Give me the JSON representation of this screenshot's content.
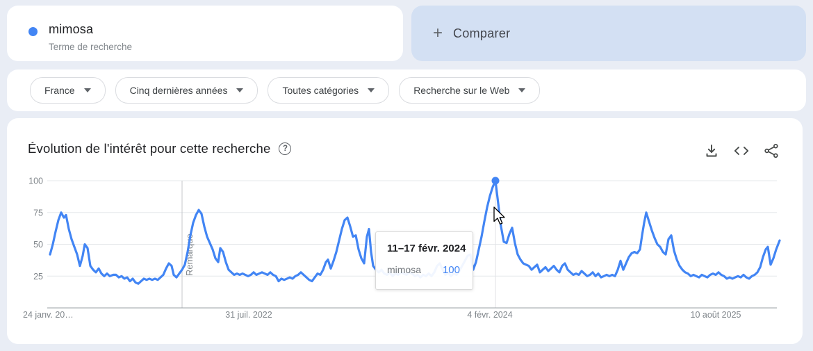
{
  "colors": {
    "accent": "#4285f4",
    "compare_bg": "#d3e0f3",
    "page_bg": "#e9edf5",
    "icon": "#444746"
  },
  "term_card": {
    "term": "mimosa",
    "subtitle": "Terme de recherche"
  },
  "compare_card": {
    "plus": "+",
    "label": "Comparer"
  },
  "filters": {
    "items": [
      {
        "label": "France"
      },
      {
        "label": "Cinq dernières années"
      },
      {
        "label": "Toutes catégories"
      },
      {
        "label": "Recherche sur le Web"
      }
    ]
  },
  "chart_card": {
    "title": "Évolution de l'intérêt pour cette recherche",
    "help_glyph": "?",
    "toolbar_icons": [
      "download-icon",
      "embed-code-icon",
      "share-icon"
    ],
    "note_label": "Remarque",
    "tooltip": {
      "date_range": "11–17 févr. 2024",
      "term": "mimosa",
      "value": "100"
    }
  },
  "chart_data": {
    "type": "line",
    "title": "Évolution de l'intérêt pour cette recherche",
    "ylim": [
      0,
      100
    ],
    "grid": true,
    "y_ticks": [
      "100",
      "75",
      "50",
      "25"
    ],
    "x_ticks": [
      "24 janv. 20…",
      "31 juil. 2022",
      "4 févr. 2024",
      "10 août 2025"
    ],
    "peak": {
      "x": 713,
      "value": 100,
      "date": "11–17 févr. 2024"
    },
    "series": [
      {
        "name": "mimosa",
        "color": "#4285f4",
        "points": [
          [
            72,
            42
          ],
          [
            76,
            50
          ],
          [
            80,
            60
          ],
          [
            84,
            69
          ],
          [
            88,
            75
          ],
          [
            92,
            71
          ],
          [
            95,
            73
          ],
          [
            99,
            62
          ],
          [
            103,
            54
          ],
          [
            107,
            48
          ],
          [
            111,
            42
          ],
          [
            115,
            33
          ],
          [
            119,
            41
          ],
          [
            122,
            50
          ],
          [
            126,
            47
          ],
          [
            130,
            33
          ],
          [
            134,
            30
          ],
          [
            138,
            28
          ],
          [
            142,
            31
          ],
          [
            146,
            27
          ],
          [
            150,
            25
          ],
          [
            154,
            27
          ],
          [
            158,
            25
          ],
          [
            163,
            26
          ],
          [
            167,
            26
          ],
          [
            171,
            24
          ],
          [
            175,
            25
          ],
          [
            179,
            23
          ],
          [
            183,
            24
          ],
          [
            187,
            21
          ],
          [
            191,
            23
          ],
          [
            195,
            20
          ],
          [
            199,
            19
          ],
          [
            203,
            21
          ],
          [
            207,
            23
          ],
          [
            211,
            22
          ],
          [
            215,
            23
          ],
          [
            219,
            22
          ],
          [
            223,
            23
          ],
          [
            227,
            22
          ],
          [
            231,
            24
          ],
          [
            235,
            26
          ],
          [
            239,
            31
          ],
          [
            243,
            35
          ],
          [
            247,
            33
          ],
          [
            250,
            26
          ],
          [
            254,
            24
          ],
          [
            258,
            27
          ],
          [
            262,
            30
          ],
          [
            266,
            34
          ],
          [
            270,
            44
          ],
          [
            274,
            57
          ],
          [
            278,
            67
          ],
          [
            282,
            73
          ],
          [
            286,
            77
          ],
          [
            290,
            74
          ],
          [
            294,
            64
          ],
          [
            298,
            56
          ],
          [
            302,
            51
          ],
          [
            306,
            46
          ],
          [
            310,
            39
          ],
          [
            314,
            36
          ],
          [
            317,
            47
          ],
          [
            321,
            44
          ],
          [
            325,
            36
          ],
          [
            329,
            30
          ],
          [
            333,
            28
          ],
          [
            337,
            26
          ],
          [
            341,
            27
          ],
          [
            345,
            26
          ],
          [
            349,
            27
          ],
          [
            353,
            26
          ],
          [
            357,
            25
          ],
          [
            361,
            26
          ],
          [
            365,
            28
          ],
          [
            369,
            26
          ],
          [
            373,
            27
          ],
          [
            377,
            28
          ],
          [
            381,
            27
          ],
          [
            385,
            26
          ],
          [
            389,
            28
          ],
          [
            393,
            26
          ],
          [
            397,
            25
          ],
          [
            401,
            21
          ],
          [
            405,
            23
          ],
          [
            409,
            22
          ],
          [
            413,
            23
          ],
          [
            417,
            24
          ],
          [
            421,
            23
          ],
          [
            425,
            25
          ],
          [
            429,
            26
          ],
          [
            433,
            28
          ],
          [
            437,
            26
          ],
          [
            441,
            24
          ],
          [
            445,
            22
          ],
          [
            449,
            21
          ],
          [
            453,
            24
          ],
          [
            457,
            27
          ],
          [
            461,
            26
          ],
          [
            465,
            30
          ],
          [
            469,
            36
          ],
          [
            472,
            38
          ],
          [
            476,
            31
          ],
          [
            480,
            37
          ],
          [
            484,
            44
          ],
          [
            488,
            53
          ],
          [
            492,
            62
          ],
          [
            496,
            69
          ],
          [
            500,
            71
          ],
          [
            504,
            64
          ],
          [
            508,
            56
          ],
          [
            512,
            57
          ],
          [
            516,
            46
          ],
          [
            520,
            39
          ],
          [
            524,
            35
          ],
          [
            528,
            56
          ],
          [
            531,
            62
          ],
          [
            534,
            44
          ],
          [
            537,
            33
          ],
          [
            541,
            30
          ],
          [
            545,
            28
          ],
          [
            549,
            30
          ],
          [
            553,
            27
          ],
          [
            557,
            26
          ],
          [
            561,
            28
          ],
          [
            565,
            25
          ],
          [
            569,
            27
          ],
          [
            573,
            26
          ],
          [
            577,
            28
          ],
          [
            581,
            27
          ],
          [
            585,
            26
          ],
          [
            589,
            28
          ],
          [
            593,
            27
          ],
          [
            597,
            25
          ],
          [
            601,
            26
          ],
          [
            605,
            24
          ],
          [
            609,
            26
          ],
          [
            613,
            25
          ],
          [
            617,
            27
          ],
          [
            621,
            25
          ],
          [
            625,
            28
          ],
          [
            629,
            33
          ],
          [
            633,
            35
          ],
          [
            637,
            30
          ],
          [
            641,
            26
          ],
          [
            645,
            28
          ],
          [
            649,
            25
          ],
          [
            653,
            27
          ],
          [
            657,
            26
          ],
          [
            661,
            29
          ],
          [
            665,
            33
          ],
          [
            669,
            37
          ],
          [
            673,
            41
          ],
          [
            677,
            42
          ],
          [
            681,
            30
          ],
          [
            685,
            36
          ],
          [
            689,
            46
          ],
          [
            693,
            56
          ],
          [
            697,
            68
          ],
          [
            701,
            79
          ],
          [
            705,
            88
          ],
          [
            709,
            95
          ],
          [
            713,
            100
          ],
          [
            717,
            82
          ],
          [
            721,
            64
          ],
          [
            725,
            52
          ],
          [
            729,
            51
          ],
          [
            733,
            58
          ],
          [
            737,
            63
          ],
          [
            741,
            51
          ],
          [
            745,
            42
          ],
          [
            749,
            38
          ],
          [
            753,
            35
          ],
          [
            757,
            34
          ],
          [
            761,
            33
          ],
          [
            765,
            30
          ],
          [
            769,
            32
          ],
          [
            773,
            34
          ],
          [
            777,
            28
          ],
          [
            781,
            30
          ],
          [
            785,
            32
          ],
          [
            789,
            29
          ],
          [
            793,
            31
          ],
          [
            797,
            33
          ],
          [
            801,
            30
          ],
          [
            805,
            28
          ],
          [
            809,
            33
          ],
          [
            813,
            35
          ],
          [
            817,
            30
          ],
          [
            821,
            28
          ],
          [
            825,
            26
          ],
          [
            829,
            27
          ],
          [
            833,
            26
          ],
          [
            837,
            29
          ],
          [
            841,
            27
          ],
          [
            845,
            25
          ],
          [
            849,
            26
          ],
          [
            853,
            28
          ],
          [
            857,
            25
          ],
          [
            861,
            27
          ],
          [
            865,
            24
          ],
          [
            869,
            25
          ],
          [
            873,
            26
          ],
          [
            877,
            25
          ],
          [
            881,
            26
          ],
          [
            885,
            25
          ],
          [
            889,
            30
          ],
          [
            893,
            37
          ],
          [
            897,
            30
          ],
          [
            901,
            35
          ],
          [
            905,
            40
          ],
          [
            909,
            43
          ],
          [
            913,
            44
          ],
          [
            917,
            43
          ],
          [
            921,
            46
          ],
          [
            924,
            57
          ],
          [
            927,
            67
          ],
          [
            930,
            75
          ],
          [
            934,
            68
          ],
          [
            938,
            61
          ],
          [
            942,
            55
          ],
          [
            946,
            50
          ],
          [
            950,
            48
          ],
          [
            954,
            44
          ],
          [
            958,
            42
          ],
          [
            962,
            54
          ],
          [
            966,
            57
          ],
          [
            970,
            45
          ],
          [
            974,
            38
          ],
          [
            978,
            33
          ],
          [
            982,
            30
          ],
          [
            986,
            28
          ],
          [
            990,
            27
          ],
          [
            994,
            25
          ],
          [
            998,
            26
          ],
          [
            1002,
            25
          ],
          [
            1006,
            24
          ],
          [
            1010,
            26
          ],
          [
            1014,
            25
          ],
          [
            1018,
            24
          ],
          [
            1022,
            26
          ],
          [
            1026,
            27
          ],
          [
            1030,
            26
          ],
          [
            1034,
            28
          ],
          [
            1038,
            26
          ],
          [
            1042,
            25
          ],
          [
            1046,
            23
          ],
          [
            1050,
            24
          ],
          [
            1054,
            23
          ],
          [
            1058,
            24
          ],
          [
            1062,
            25
          ],
          [
            1066,
            24
          ],
          [
            1070,
            26
          ],
          [
            1074,
            24
          ],
          [
            1078,
            23
          ],
          [
            1082,
            25
          ],
          [
            1086,
            26
          ],
          [
            1090,
            28
          ],
          [
            1094,
            32
          ],
          [
            1098,
            40
          ],
          [
            1102,
            46
          ],
          [
            1105,
            48
          ],
          [
            1109,
            34
          ],
          [
            1113,
            39
          ],
          [
            1117,
            46
          ],
          [
            1122,
            53
          ]
        ]
      }
    ]
  }
}
